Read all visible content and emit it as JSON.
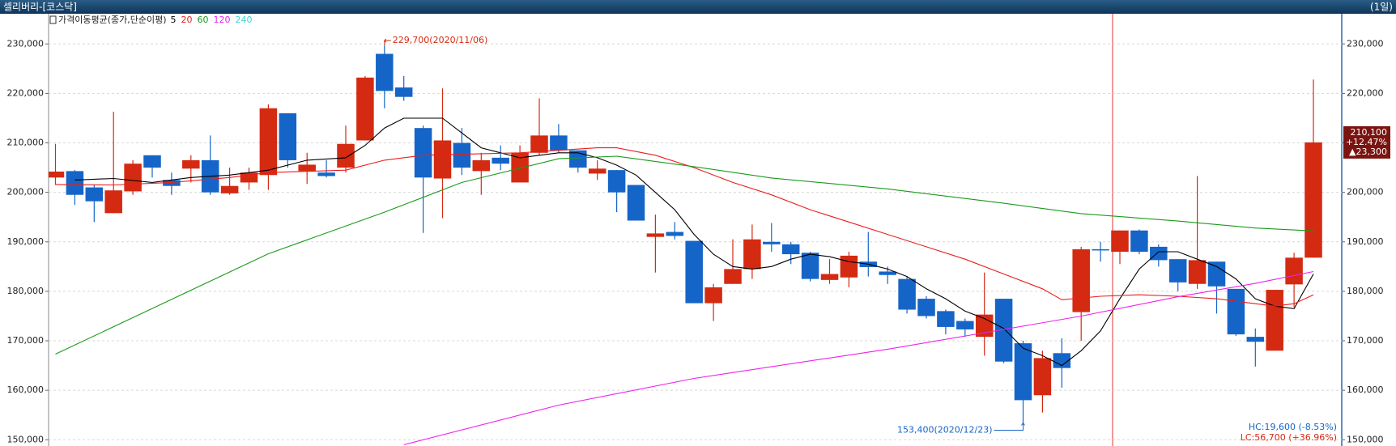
{
  "chart_data": {
    "type": "candlestick",
    "title": "셀리버리-[코스닥]",
    "period": "(1일)",
    "legend_title": "가격이동평균(종가,단순이평)",
    "ylim": [
      148900,
      236100
    ],
    "yticks": [
      {
        "value": 150000,
        "label": "150,000"
      },
      {
        "value": 160000,
        "label": "160,000"
      },
      {
        "value": 170000,
        "label": "170,000"
      },
      {
        "value": 180000,
        "label": "180,000"
      },
      {
        "value": 190000,
        "label": "190,000"
      },
      {
        "value": 200000,
        "label": "200,000"
      },
      {
        "value": 210000,
        "label": "210,000"
      },
      {
        "value": 220000,
        "label": "220,000"
      },
      {
        "value": 230000,
        "label": "230,000"
      }
    ],
    "grid": true,
    "up_color": "#d42a12",
    "down_color": "#1565c8",
    "ohlc": {
      "open": [
        203000,
        204300,
        201000,
        195800,
        200200,
        207500,
        202500,
        204800,
        206500,
        199800,
        202000,
        203500,
        216000,
        204300,
        204000,
        205000,
        210500,
        228000,
        221200,
        213000,
        202800,
        210000,
        204300,
        207000,
        202000,
        208000,
        211500,
        208500,
        203800,
        204500,
        201500,
        191000,
        192000,
        190200,
        177600,
        181500,
        184500,
        190000,
        189500,
        187800,
        182300,
        182800,
        186000,
        184000,
        182500,
        178500,
        176000,
        174000,
        170800,
        178500,
        169500,
        159000,
        167500,
        175800,
        188500,
        188000,
        192300,
        189000,
        186500,
        181500,
        186000,
        180500,
        170800,
        168000,
        181400,
        186800
      ],
      "high": [
        209800,
        204500,
        201500,
        216300,
        206500,
        207500,
        204000,
        207500,
        211500,
        205000,
        205000,
        217800,
        216000,
        208000,
        206500,
        213500,
        223500,
        229700,
        223500,
        213500,
        221000,
        213000,
        208000,
        209500,
        209500,
        219000,
        213800,
        208500,
        206500,
        204500,
        201500,
        195500,
        194000,
        190200,
        181500,
        190500,
        193500,
        193800,
        190000,
        188000,
        186500,
        188000,
        192000,
        185000,
        183000,
        179000,
        176300,
        174500,
        183800,
        178500,
        170000,
        168000,
        170500,
        189000,
        190000,
        192300,
        192500,
        189500,
        186500,
        203300,
        186000,
        180500,
        172500,
        180300,
        187800,
        222800
      ],
      "low": [
        201500,
        197500,
        194000,
        195800,
        199500,
        203000,
        199500,
        202000,
        199500,
        199500,
        200500,
        200500,
        205000,
        201700,
        203000,
        204000,
        210500,
        217000,
        218500,
        191800,
        194800,
        203500,
        199500,
        204500,
        202000,
        207500,
        208000,
        204000,
        202500,
        196000,
        194300,
        183800,
        190500,
        177600,
        174000,
        181500,
        182500,
        188000,
        185500,
        182000,
        181500,
        180800,
        183000,
        181500,
        175500,
        174500,
        171300,
        170800,
        167000,
        165500,
        153400,
        155500,
        160500,
        170000,
        186000,
        185500,
        187500,
        185000,
        180000,
        180500,
        175500,
        171000,
        164800,
        168000,
        176800,
        186800
      ],
      "close": [
        204200,
        199500,
        198200,
        200400,
        205800,
        205000,
        201300,
        206500,
        200000,
        201300,
        204000,
        217000,
        206500,
        205600,
        203300,
        209800,
        223200,
        220500,
        219300,
        203000,
        210500,
        205000,
        206500,
        205800,
        208000,
        211500,
        208500,
        205000,
        204800,
        200000,
        194300,
        191700,
        191200,
        177600,
        180800,
        184500,
        190500,
        189500,
        187500,
        182500,
        183500,
        187200,
        184900,
        183300,
        176300,
        175000,
        172800,
        172300,
        175300,
        165800,
        158000,
        166500,
        164500,
        188500,
        188300,
        192300,
        188000,
        186300,
        181800,
        186300,
        181000,
        171300,
        169800,
        180300,
        186800,
        210100
      ]
    },
    "moving_averages": [
      {
        "name": "5",
        "color": "#000000",
        "x": [
          1,
          3,
          5,
          7,
          9,
          11,
          13,
          15,
          16,
          17,
          18,
          19,
          20,
          21,
          22,
          23,
          24,
          26,
          27,
          28,
          29,
          30,
          31,
          32,
          33,
          34,
          35,
          36,
          37,
          38,
          39,
          40,
          41,
          42,
          43,
          44,
          45,
          46,
          47,
          48,
          49,
          50,
          51,
          52,
          53,
          54,
          55,
          56,
          57,
          58,
          59,
          60,
          61,
          62,
          63,
          64,
          65
        ],
        "values": [
          202500,
          202800,
          202000,
          203000,
          203500,
          204500,
          206500,
          207000,
          209500,
          213000,
          215000,
          215000,
          215000,
          212000,
          209000,
          208000,
          207000,
          208000,
          208000,
          207000,
          205500,
          203500,
          200000,
          196500,
          191500,
          187500,
          185000,
          184500,
          185000,
          186500,
          187500,
          187000,
          186000,
          185500,
          184500,
          183000,
          180500,
          178500,
          176000,
          174500,
          172500,
          168500,
          167000,
          165000,
          168000,
          172000,
          178500,
          184500,
          188000,
          188000,
          186500,
          185000,
          182500,
          178500,
          177000,
          176500,
          183500
        ]
      },
      {
        "name": "20",
        "color": "#ee1c1c",
        "x": [
          0,
          3,
          6,
          9,
          11,
          15,
          17,
          19,
          21,
          24,
          26,
          28,
          29,
          31,
          33,
          35,
          37,
          39,
          41,
          43,
          45,
          47,
          49,
          51,
          52,
          54,
          56,
          58,
          60,
          62,
          63,
          64,
          65
        ],
        "values": [
          201600,
          201500,
          202000,
          203000,
          204000,
          204500,
          206500,
          207500,
          207700,
          208000,
          208500,
          209000,
          209000,
          207500,
          205000,
          202000,
          199500,
          196500,
          194000,
          191500,
          189000,
          186500,
          183500,
          180500,
          178300,
          179000,
          179300,
          179000,
          178500,
          177500,
          177000,
          177500,
          179300
        ]
      },
      {
        "name": "60",
        "color": "#1a9a1a",
        "x": [
          0,
          11,
          17,
          21,
          26,
          29,
          33,
          37,
          43,
          49,
          53,
          58,
          62,
          65
        ],
        "values": [
          167300,
          187600,
          196000,
          202000,
          206800,
          207300,
          205200,
          202900,
          200700,
          197800,
          195700,
          194200,
          192800,
          192200
        ]
      },
      {
        "name": "120",
        "color": "#ee20ee",
        "x": [
          18,
          26,
          33,
          43,
          49,
          53,
          58,
          62,
          65
        ],
        "values": [
          149000,
          157000,
          162400,
          168300,
          172300,
          175000,
          178900,
          181600,
          184000
        ]
      },
      {
        "name": "240",
        "color": "#3ad6d6",
        "x": [],
        "values": []
      }
    ],
    "annotations": {
      "high": "229,700(2020/11/06)",
      "low": "153,400(2020/12/23)"
    },
    "last_price": {
      "price": "210,100",
      "change_pct": "+12.47%",
      "change": "▲23,300"
    },
    "range_info": {
      "hc": "HC:19,600 (-8.53%)",
      "lc": "LC:56,700 (+36.96%)"
    }
  }
}
